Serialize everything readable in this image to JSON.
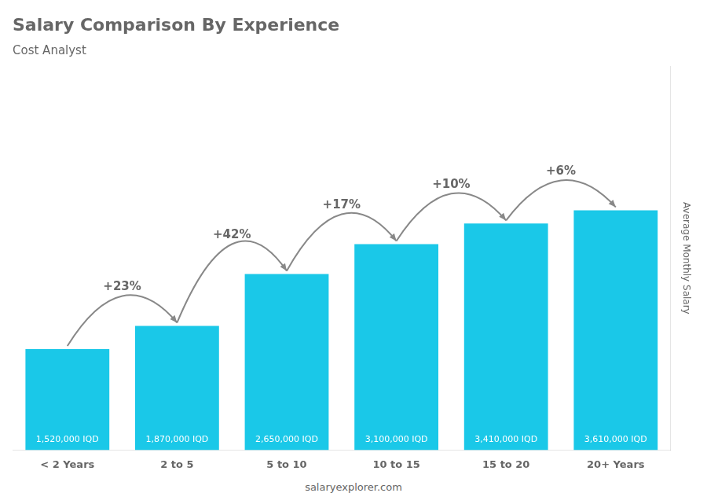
{
  "chart_data": {
    "type": "bar",
    "title": "Salary Comparison By Experience",
    "subtitle": "Cost Analyst",
    "y_label": "Average Monthly Salary",
    "watermark": "salaryexplorer.com",
    "categories": [
      "< 2 Years",
      "2 to 5",
      "5 to 10",
      "10 to 15",
      "15 to 20",
      "20+ Years"
    ],
    "values": [
      1520000,
      1870000,
      2650000,
      3100000,
      3410000,
      3610000
    ],
    "value_labels": [
      "1,520,000 IQD",
      "1,870,000 IQD",
      "2,650,000 IQD",
      "3,100,000 IQD",
      "3,410,000 IQD",
      "3,610,000 IQD"
    ],
    "pct_changes": [
      null,
      "+23%",
      "+42%",
      "+17%",
      "+10%",
      "+6%"
    ],
    "color": "#1ac8e8",
    "ylim": [
      0,
      5776000
    ],
    "data_labels": true,
    "tick_labels": "x",
    "grid": false
  }
}
